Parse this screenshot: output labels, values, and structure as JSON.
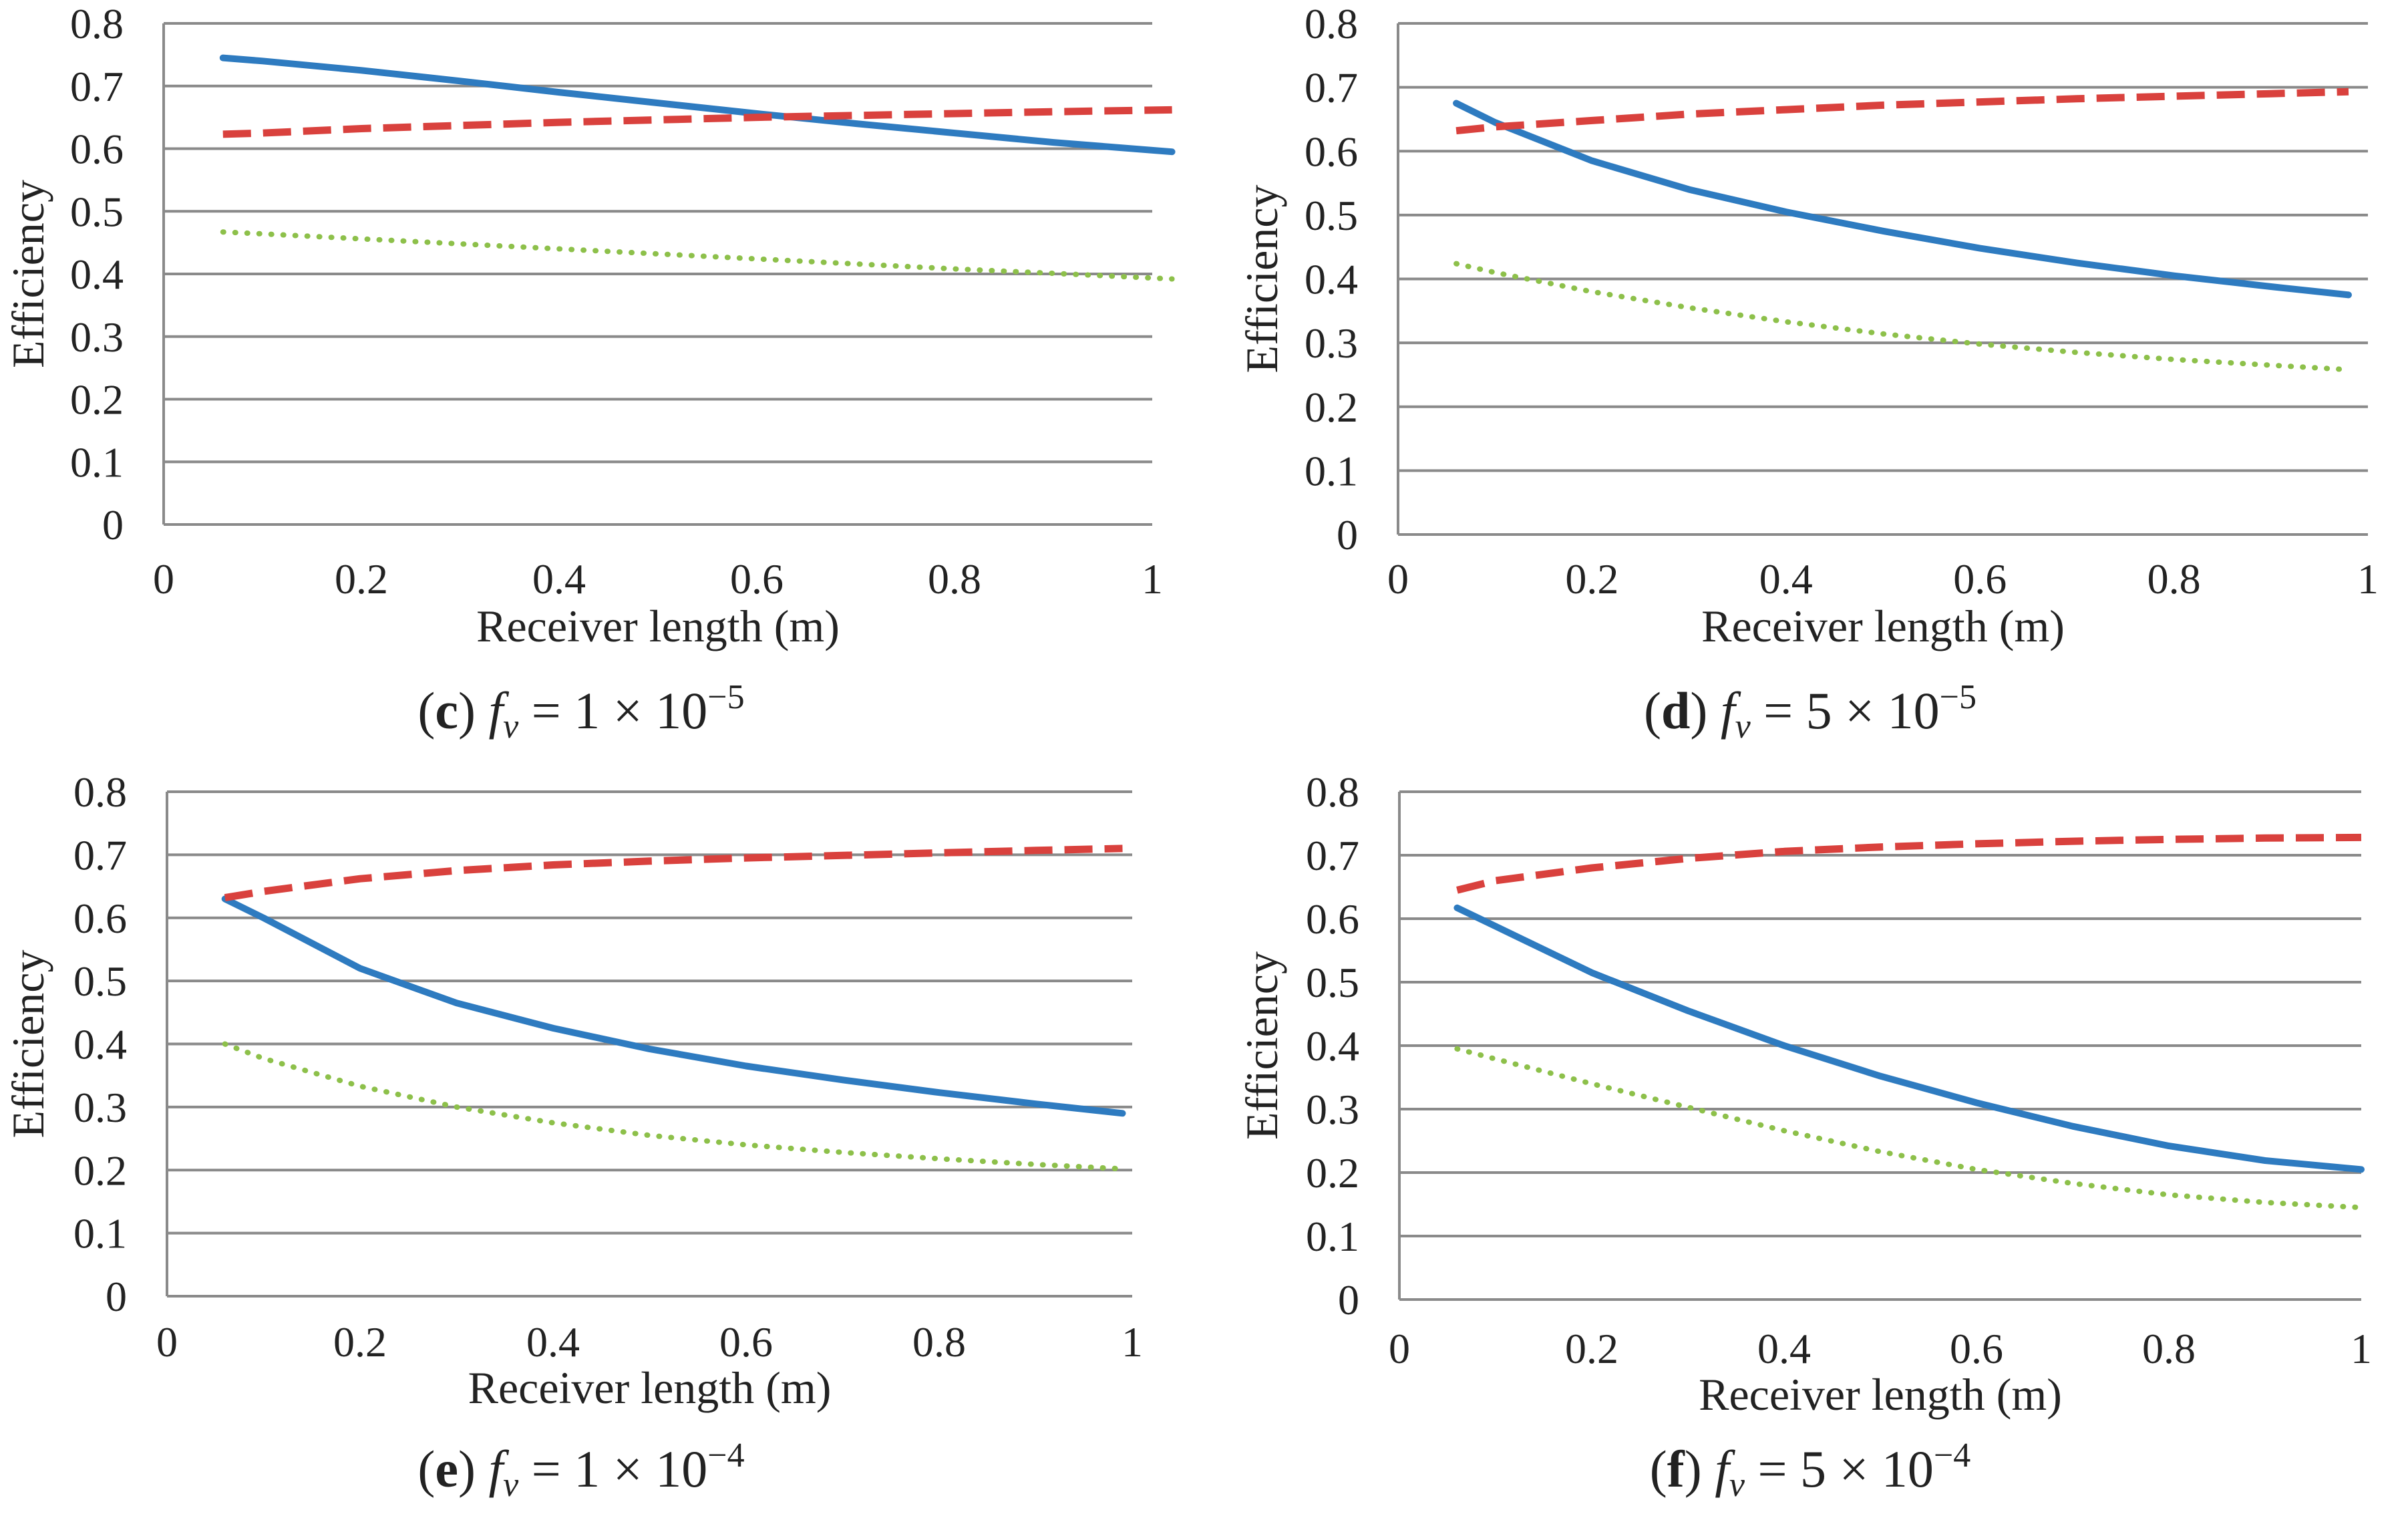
{
  "chart_data": [
    {
      "type": "line",
      "panel": "c",
      "caption": {
        "letter": "c",
        "var_main": "f",
        "var_sub": "v",
        "mid": " = 1 × 10",
        "exp": "−5"
      },
      "xlabel": "Receiver length (m)",
      "ylabel": "Efficiency",
      "xlim": [
        0,
        1
      ],
      "ylim": [
        0,
        0.8
      ],
      "x_tick_labels": [
        "0",
        "0.2",
        "0.4",
        "0.6",
        "0.8",
        "1"
      ],
      "y_tick_labels": [
        "0",
        "0.1",
        "0.2",
        "0.3",
        "0.4",
        "0.5",
        "0.6",
        "0.7",
        "0.8"
      ],
      "grid": true,
      "x": [
        0.06,
        0.1,
        0.2,
        0.3,
        0.4,
        0.5,
        0.6,
        0.7,
        0.8,
        0.9,
        1.02
      ],
      "series": [
        {
          "name": "solid",
          "style": "solid",
          "color": "#2E7BC0",
          "values": [
            0.745,
            0.74,
            0.725,
            0.708,
            0.69,
            0.673,
            0.656,
            0.64,
            0.625,
            0.61,
            0.595
          ]
        },
        {
          "name": "dashed",
          "style": "dashed",
          "color": "#D9413D",
          "values": [
            0.623,
            0.625,
            0.632,
            0.637,
            0.642,
            0.646,
            0.65,
            0.653,
            0.656,
            0.659,
            0.662
          ]
        },
        {
          "name": "dotted",
          "style": "dotted",
          "color": "#8DC04A",
          "values": [
            0.467,
            0.464,
            0.456,
            0.448,
            0.44,
            0.432,
            0.424,
            0.416,
            0.408,
            0.401,
            0.392
          ]
        }
      ]
    },
    {
      "type": "line",
      "panel": "d",
      "caption": {
        "letter": "d",
        "var_main": "f",
        "var_sub": "v",
        "mid": " = 5 × 10",
        "exp": "−5"
      },
      "xlabel": "Receiver length (m)",
      "ylabel": "Efficiency",
      "xlim": [
        0,
        1
      ],
      "ylim": [
        0,
        0.8
      ],
      "x_tick_labels": [
        "0",
        "0.2",
        "0.4",
        "0.6",
        "0.8",
        "1"
      ],
      "y_tick_labels": [
        "0",
        "0.1",
        "0.2",
        "0.3",
        "0.4",
        "0.5",
        "0.6",
        "0.7",
        "0.8"
      ],
      "grid": true,
      "x": [
        0.06,
        0.1,
        0.2,
        0.3,
        0.4,
        0.5,
        0.6,
        0.7,
        0.8,
        0.9,
        0.98
      ],
      "series": [
        {
          "name": "solid",
          "style": "solid",
          "color": "#2E7BC0",
          "values": [
            0.675,
            0.645,
            0.585,
            0.54,
            0.505,
            0.475,
            0.448,
            0.425,
            0.405,
            0.388,
            0.375
          ]
        },
        {
          "name": "dashed",
          "style": "dashed",
          "color": "#D9413D",
          "values": [
            0.632,
            0.638,
            0.648,
            0.658,
            0.665,
            0.672,
            0.677,
            0.682,
            0.686,
            0.69,
            0.693
          ]
        },
        {
          "name": "dotted",
          "style": "dotted",
          "color": "#8DC04A",
          "values": [
            0.424,
            0.41,
            0.38,
            0.355,
            0.333,
            0.314,
            0.298,
            0.285,
            0.274,
            0.265,
            0.258
          ]
        }
      ]
    },
    {
      "type": "line",
      "panel": "e",
      "caption": {
        "letter": "e",
        "var_main": "f",
        "var_sub": "v",
        "mid": " = 1 × 10",
        "exp": "−4"
      },
      "xlabel": "Receiver length (m)",
      "ylabel": "Efficiency",
      "xlim": [
        0,
        1
      ],
      "ylim": [
        0,
        0.8
      ],
      "x_tick_labels": [
        "0",
        "0.2",
        "0.4",
        "0.6",
        "0.8",
        "1"
      ],
      "y_tick_labels": [
        "0",
        "0.1",
        "0.2",
        "0.3",
        "0.4",
        "0.5",
        "0.6",
        "0.7",
        "0.8"
      ],
      "grid": true,
      "x": [
        0.06,
        0.1,
        0.2,
        0.3,
        0.4,
        0.5,
        0.6,
        0.7,
        0.8,
        0.9,
        0.99
      ],
      "series": [
        {
          "name": "solid",
          "style": "solid",
          "color": "#2E7BC0",
          "values": [
            0.63,
            0.6,
            0.52,
            0.465,
            0.425,
            0.392,
            0.365,
            0.343,
            0.323,
            0.305,
            0.29
          ]
        },
        {
          "name": "dashed",
          "style": "dashed",
          "color": "#D9413D",
          "values": [
            0.632,
            0.642,
            0.662,
            0.675,
            0.684,
            0.69,
            0.695,
            0.699,
            0.703,
            0.707,
            0.71
          ]
        },
        {
          "name": "dotted",
          "style": "dotted",
          "color": "#8DC04A",
          "values": [
            0.4,
            0.377,
            0.333,
            0.3,
            0.275,
            0.255,
            0.24,
            0.228,
            0.218,
            0.209,
            0.202
          ]
        }
      ]
    },
    {
      "type": "line",
      "panel": "f",
      "caption": {
        "letter": "f",
        "var_main": "f",
        "var_sub": "v",
        "mid": " = 5 × 10",
        "exp": "−4"
      },
      "xlabel": "Receiver length (m)",
      "ylabel": "Efficiency",
      "xlim": [
        0,
        1
      ],
      "ylim": [
        0,
        0.8
      ],
      "x_tick_labels": [
        "0",
        "0.2",
        "0.4",
        "0.6",
        "0.8",
        "1"
      ],
      "y_tick_labels": [
        "0",
        "0.1",
        "0.2",
        "0.3",
        "0.4",
        "0.5",
        "0.6",
        "0.7",
        "0.8"
      ],
      "grid": true,
      "x": [
        0.06,
        0.1,
        0.2,
        0.3,
        0.4,
        0.5,
        0.6,
        0.7,
        0.8,
        0.9,
        1.0
      ],
      "series": [
        {
          "name": "solid",
          "style": "solid",
          "color": "#2E7BC0",
          "values": [
            0.617,
            0.588,
            0.515,
            0.455,
            0.4,
            0.352,
            0.31,
            0.273,
            0.242,
            0.219,
            0.205
          ]
        },
        {
          "name": "dashed",
          "style": "dashed",
          "color": "#D9413D",
          "values": [
            0.645,
            0.66,
            0.68,
            0.695,
            0.706,
            0.713,
            0.718,
            0.722,
            0.725,
            0.727,
            0.728
          ]
        },
        {
          "name": "dotted",
          "style": "dotted",
          "color": "#8DC04A",
          "values": [
            0.395,
            0.379,
            0.34,
            0.303,
            0.266,
            0.233,
            0.205,
            0.183,
            0.165,
            0.153,
            0.145
          ]
        }
      ]
    }
  ]
}
